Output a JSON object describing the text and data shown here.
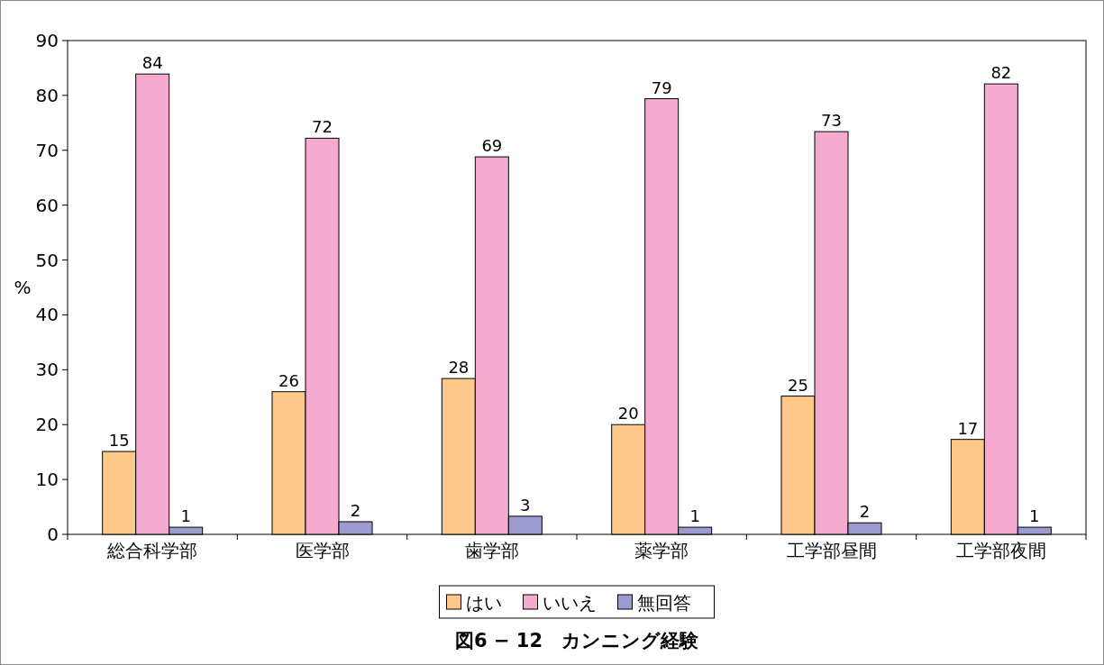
{
  "chart_data": {
    "type": "bar",
    "title": "図6 − 12　カンニング経験",
    "ylabel": "%",
    "categories": [
      "総合科学部",
      "医学部",
      "歯学部",
      "薬学部",
      "工学部昼間",
      "工学部夜間"
    ],
    "series": [
      {
        "name": "はい",
        "color": "#fcc98a",
        "values": [
          15.1,
          26,
          28.4,
          20,
          25.2,
          17.3
        ],
        "value_labels": [
          "15",
          "26",
          "28",
          "20",
          "25",
          "17"
        ]
      },
      {
        "name": "いいえ",
        "color": "#f5abcf",
        "values": [
          83.9,
          72.2,
          68.8,
          79.4,
          73.4,
          82.1
        ],
        "value_labels": [
          "84",
          "72",
          "69",
          "79",
          "73",
          "82"
        ]
      },
      {
        "name": "無回答",
        "color": "#9b9bcf",
        "values": [
          1.3,
          2.3,
          3.3,
          1.3,
          2.1,
          1.3
        ],
        "value_labels": [
          "1",
          "2",
          "3",
          "1",
          "2",
          "1"
        ]
      }
    ],
    "ylim": [
      0,
      90
    ],
    "yticks": [
      0,
      10,
      20,
      30,
      40,
      50,
      60,
      70,
      80,
      90
    ],
    "legend": "bottom"
  }
}
